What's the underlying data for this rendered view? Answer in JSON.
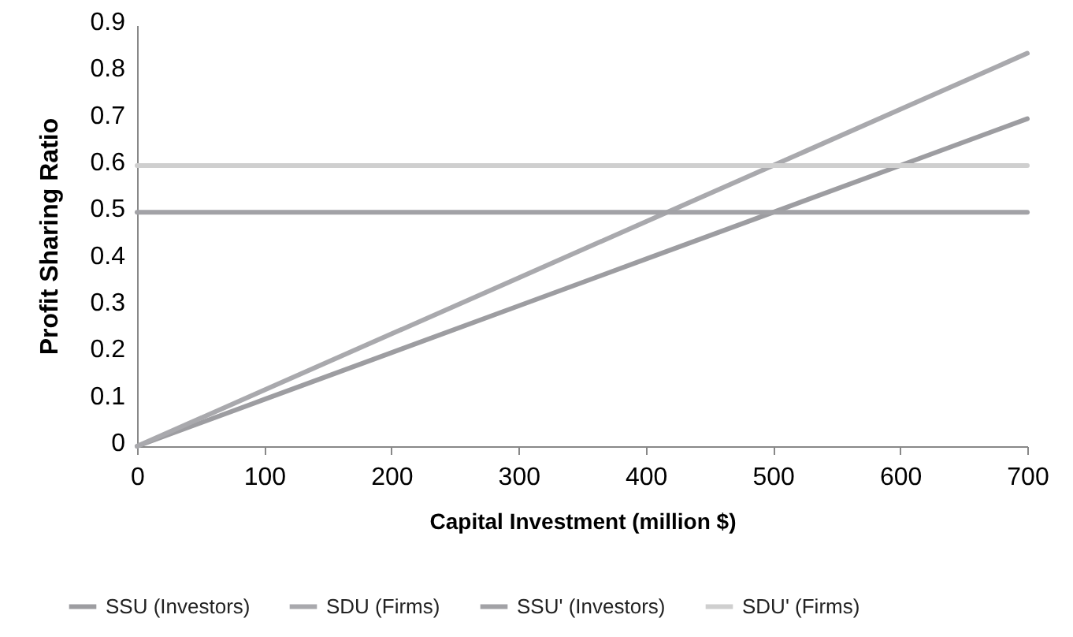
{
  "chart_data": {
    "type": "line",
    "xlabel": "Capital Investment (million $)",
    "ylabel": "Profit Sharing Ratio",
    "xlim": [
      0,
      700
    ],
    "xticks": [
      0,
      100,
      200,
      300,
      400,
      500,
      600,
      700
    ],
    "ylim": [
      0,
      0.9
    ],
    "yticks": [
      0,
      0.1,
      0.2,
      0.3,
      0.4,
      0.5,
      0.6,
      0.7,
      0.8,
      0.9
    ],
    "grid": false,
    "legend": "bottom",
    "marker": "none",
    "line_style": "solid",
    "series": [
      {
        "name": "SSU (Investors)",
        "color": "#9d9da1",
        "x": [
          0,
          100,
          200,
          300,
          400,
          500,
          600,
          700
        ],
        "values": [
          0,
          0.1,
          0.2,
          0.3,
          0.4,
          0.5,
          0.6,
          0.7
        ]
      },
      {
        "name": "SDU (Firms)",
        "color": "#a9a9ad",
        "x": [
          0,
          100,
          200,
          300,
          400,
          500,
          600,
          700
        ],
        "values": [
          0,
          0.12,
          0.24,
          0.36,
          0.48,
          0.6,
          0.72,
          0.84
        ]
      },
      {
        "name": "SSU' (Investors)",
        "color": "#a2a2a6",
        "x": [
          0,
          100,
          200,
          300,
          400,
          500,
          600,
          700
        ],
        "values": [
          0.5,
          0.5,
          0.5,
          0.5,
          0.5,
          0.5,
          0.5,
          0.5
        ]
      },
      {
        "name": "SDU' (Firms)",
        "color": "#cfcfcf",
        "x": [
          0,
          100,
          200,
          300,
          400,
          500,
          600,
          700
        ],
        "values": [
          0.6,
          0.6,
          0.6,
          0.6,
          0.6,
          0.6,
          0.6,
          0.6
        ]
      }
    ]
  }
}
